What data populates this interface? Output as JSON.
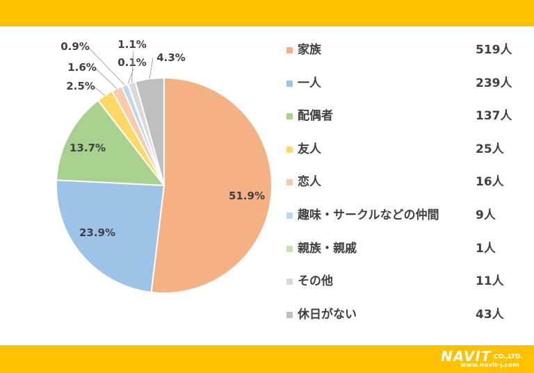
{
  "chart_data": {
    "type": "pie",
    "start_angle_deg": -90,
    "direction": "clockwise",
    "slices": [
      {
        "label": "家族",
        "count": "519人",
        "value": 51.9,
        "pct": "51.9%",
        "color": "#f4b183"
      },
      {
        "label": "一人",
        "count": "239人",
        "value": 23.9,
        "pct": "23.9%",
        "color": "#9dc3e6"
      },
      {
        "label": "配偶者",
        "count": "137人",
        "value": 13.7,
        "pct": "13.7%",
        "color": "#a9d18e"
      },
      {
        "label": "友人",
        "count": "25人",
        "value": 2.5,
        "pct": "2.5%",
        "color": "#ffd966"
      },
      {
        "label": "恋人",
        "count": "16人",
        "value": 1.6,
        "pct": "1.6%",
        "color": "#f8cbad"
      },
      {
        "label": "趣味・サークルなどの仲間",
        "count": "9人",
        "value": 0.9,
        "pct": "0.9%",
        "color": "#bdd7ee"
      },
      {
        "label": "親族・親戚",
        "count": "1人",
        "value": 0.1,
        "pct": "0.1%",
        "color": "#c5e0b4"
      },
      {
        "label": "その他",
        "count": "11人",
        "value": 1.1,
        "pct": "1.1%",
        "color": "#d9d9d9"
      },
      {
        "label": "休日がない",
        "count": "43人",
        "value": 4.3,
        "pct": "4.3%",
        "color": "#bfbfbf"
      }
    ],
    "legend_position": "right"
  },
  "branding": {
    "logo_text": "NAVIT",
    "logo_suffix": "CO.,LTD.",
    "url": "www.navit-j.com",
    "bar_color": "#ffc000"
  }
}
